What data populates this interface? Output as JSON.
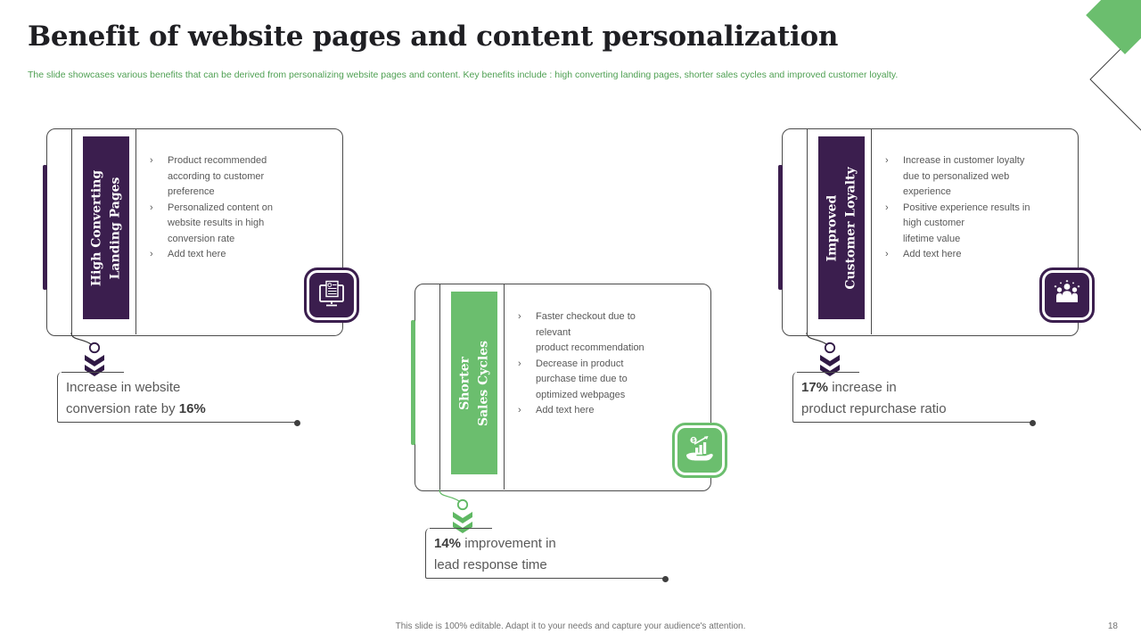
{
  "slide": {
    "title": "Benefit of website pages and content personalization",
    "subtitle": "The slide showcases various benefits that can be derived from personalizing website pages and content. Key benefits include : high converting landing pages, shorter sales cycles and improved customer loyalty.",
    "footer": "This slide is 100% editable.  Adapt it to your needs and capture your audience's attention.",
    "page_number": "18",
    "bullet_marker": "›"
  },
  "colors": {
    "purple": "#3B1E4E",
    "green": "#6BBE6E",
    "line_gray": "#4B4B4B",
    "body_text": "#595959",
    "title_text": "#1F1F23",
    "subtitle_green": "#4FA053"
  },
  "cards": [
    {
      "label": "High Converting\nLanding Pages",
      "accent": "purple",
      "icon": "monitor-document-icon",
      "bullets": [
        "Product recommended\naccording to customer\npreference",
        "Personalized content on\nwebsite results in high\nconversion rate",
        "Add text here"
      ],
      "stat": [
        {
          "text": "Increase in website\nconversion rate by ",
          "bold": false
        },
        {
          "text": "16%",
          "bold": true
        }
      ]
    },
    {
      "label": "Shorter\nSales Cycles",
      "accent": "green",
      "icon": "hand-chart-icon",
      "bullets": [
        "Faster checkout due to\nrelevant\nproduct recommendation",
        "Decrease in product\npurchase time due to\noptimized webpages",
        "Add text here"
      ],
      "stat": [
        {
          "text": "14%",
          "bold": true
        },
        {
          "text": " improvement in\nlead response time",
          "bold": false
        }
      ]
    },
    {
      "label": "Improved\nCustomer Loyalty",
      "accent": "purple",
      "icon": "team-icon",
      "bullets": [
        "Increase in customer loyalty\ndue to personalized web\nexperience",
        "Positive experience results in\nhigh customer\nlifetime value",
        "Add text here"
      ],
      "stat": [
        {
          "text": "17%",
          "bold": true
        },
        {
          "text": " increase in\nproduct repurchase ratio",
          "bold": false
        }
      ]
    }
  ]
}
